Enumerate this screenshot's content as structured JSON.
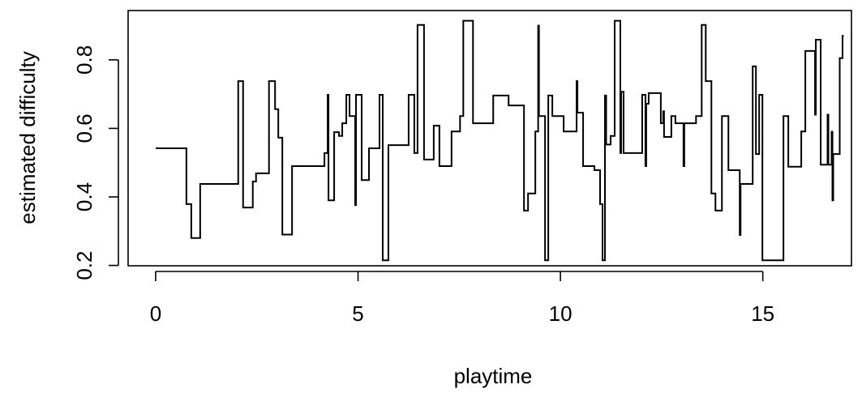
{
  "chart_data": {
    "type": "line",
    "step": true,
    "color": "#000000",
    "x_label": "playtime",
    "y_label": "estimated difficulty",
    "xlim": [
      -0.68,
      17.19
    ],
    "ylim": [
      0.199,
      0.944
    ],
    "xticks": [
      0,
      5,
      10,
      15
    ],
    "yticks": [
      0.2,
      0.4,
      0.6,
      0.8
    ],
    "x": [
      0,
      0.76,
      0.88,
      1.1,
      2.04,
      2.16,
      2.4,
      2.48,
      2.8,
      2.95,
      3.03,
      3.13,
      3.37,
      4.17,
      4.25,
      4.27,
      4.41,
      4.53,
      4.61,
      4.71,
      4.79,
      4.93,
      4.95,
      5.09,
      5.27,
      5.53,
      5.61,
      5.75,
      6.25,
      6.39,
      6.47,
      6.63,
      6.87,
      7.01,
      7.31,
      7.52,
      7.6,
      7.84,
      8.34,
      8.72,
      9.1,
      9.2,
      9.38,
      9.45,
      9.47,
      9.62,
      9.7,
      9.8,
      10.08,
      10.4,
      10.42,
      10.56,
      10.84,
      10.98,
      11.04,
      11.1,
      11.13,
      11.24,
      11.34,
      11.48,
      11.5,
      11.56,
      12.02,
      12.1,
      12.12,
      12.18,
      12.48,
      12.54,
      12.56,
      12.74,
      12.84,
      13.04,
      13.06,
      13.35,
      13.49,
      13.59,
      13.73,
      13.83,
      13.99,
      14.15,
      14.43,
      14.45,
      14.75,
      14.83,
      14.91,
      14.99,
      15.51,
      15.63,
      15.95,
      16.05,
      16.29,
      16.31,
      16.43,
      16.6,
      16.62,
      16.7,
      16.72,
      16.74,
      16.9,
      16.97,
      17.0
    ],
    "values": [
      0.542,
      0.379,
      0.28,
      0.438,
      0.738,
      0.369,
      0.445,
      0.469,
      0.738,
      0.656,
      0.573,
      0.29,
      0.49,
      0.528,
      0.698,
      0.39,
      0.589,
      0.578,
      0.615,
      0.698,
      0.636,
      0.376,
      0.698,
      0.449,
      0.542,
      0.698,
      0.215,
      0.551,
      0.698,
      0.528,
      0.902,
      0.509,
      0.608,
      0.49,
      0.591,
      0.636,
      0.914,
      0.615,
      0.696,
      0.667,
      0.36,
      0.41,
      0.591,
      0.9,
      0.636,
      0.215,
      0.696,
      0.636,
      0.591,
      0.738,
      0.646,
      0.49,
      0.478,
      0.379,
      0.215,
      0.696,
      0.553,
      0.578,
      0.914,
      0.528,
      0.707,
      0.528,
      0.698,
      0.49,
      0.672,
      0.703,
      0.615,
      0.65,
      0.575,
      0.636,
      0.615,
      0.49,
      0.615,
      0.636,
      0.902,
      0.738,
      0.41,
      0.36,
      0.636,
      0.478,
      0.289,
      0.438,
      0.781,
      0.525,
      0.698,
      0.215,
      0.636,
      0.488,
      0.591,
      0.826,
      0.64,
      0.859,
      0.494,
      0.64,
      0.494,
      0.59,
      0.39,
      0.525,
      0.805,
      0.87,
      0.87
    ]
  }
}
